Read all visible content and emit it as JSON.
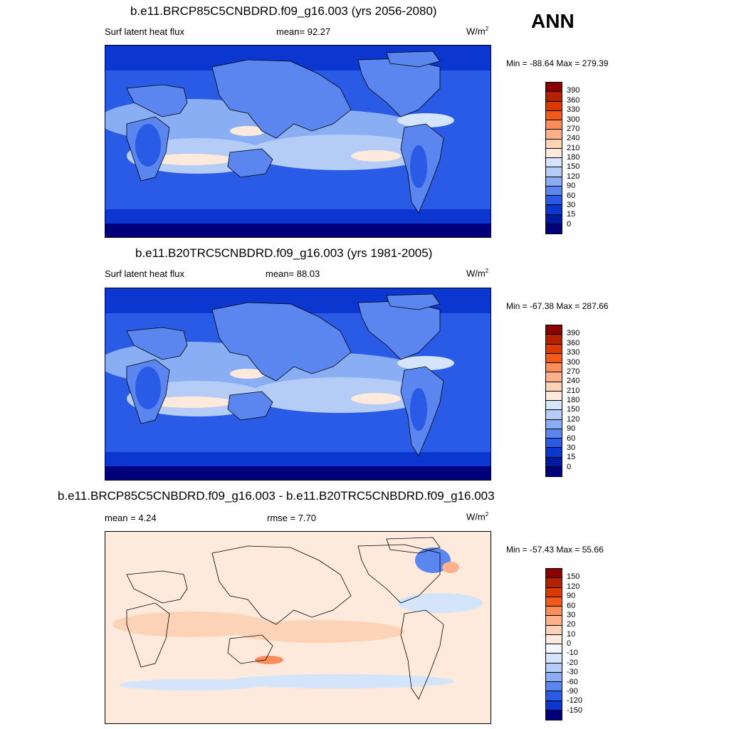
{
  "header": {
    "season": "ANN"
  },
  "panels": [
    {
      "title": "b.e11.BRCP85C5CNBDRD.f09_g16.003 (yrs 2056-2080)",
      "left": "Surf latent heat flux",
      "center": "mean=  92.27",
      "units_base": "W/m",
      "units_exp": "2",
      "minmax": "Min = -88.64 Max = 279.39",
      "palette": "abs",
      "levels": [
        "390",
        "360",
        "330",
        "300",
        "270",
        "240",
        "210",
        "180",
        "150",
        "120",
        "90",
        "60",
        "30",
        "15",
        "0"
      ]
    },
    {
      "title": "b.e11.B20TRC5CNBDRD.f09_g16.003 (yrs 1981-2005)",
      "left": "Surf latent heat flux",
      "center": "mean=  88.03",
      "units_base": "W/m",
      "units_exp": "2",
      "minmax": "Min = -67.38 Max = 287.66",
      "palette": "abs",
      "levels": [
        "390",
        "360",
        "330",
        "300",
        "270",
        "240",
        "210",
        "180",
        "150",
        "120",
        "90",
        "60",
        "30",
        "15",
        "0"
      ]
    },
    {
      "title": "b.e11.BRCP85C5CNBDRD.f09_g16.003 - b.e11.B20TRC5CNBDRD.f09_g16.003",
      "left": "mean =   4.24",
      "center": "rmse =   7.70",
      "units_base": "W/m",
      "units_exp": "2",
      "minmax": "Min = -57.43 Max =  55.66",
      "palette": "diff",
      "levels": [
        "150",
        "120",
        "90",
        "60",
        "30",
        "20",
        "10",
        "0",
        "-10",
        "-20",
        "-30",
        "-60",
        "-90",
        "-120",
        "-150"
      ]
    }
  ],
  "colors": {
    "abs": [
      "#8b0000",
      "#b22200",
      "#d83a00",
      "#f25a1c",
      "#fb8d5a",
      "#fdb08a",
      "#fdd3b8",
      "#fdeadc",
      "#d4e4fa",
      "#b5ccf7",
      "#8aaef3",
      "#5b86ef",
      "#2a5be6",
      "#0c36d0",
      "#001aa0",
      "#00007a"
    ],
    "diff": [
      "#8b0000",
      "#b22200",
      "#d83a00",
      "#f25a1c",
      "#fb8d5a",
      "#fdb08a",
      "#fdd3b8",
      "#fdeadc",
      "#f4f7fd",
      "#d4e4fa",
      "#b5ccf7",
      "#8aaef3",
      "#5b86ef",
      "#2a5be6",
      "#0c36d0",
      "#00007a"
    ]
  }
}
